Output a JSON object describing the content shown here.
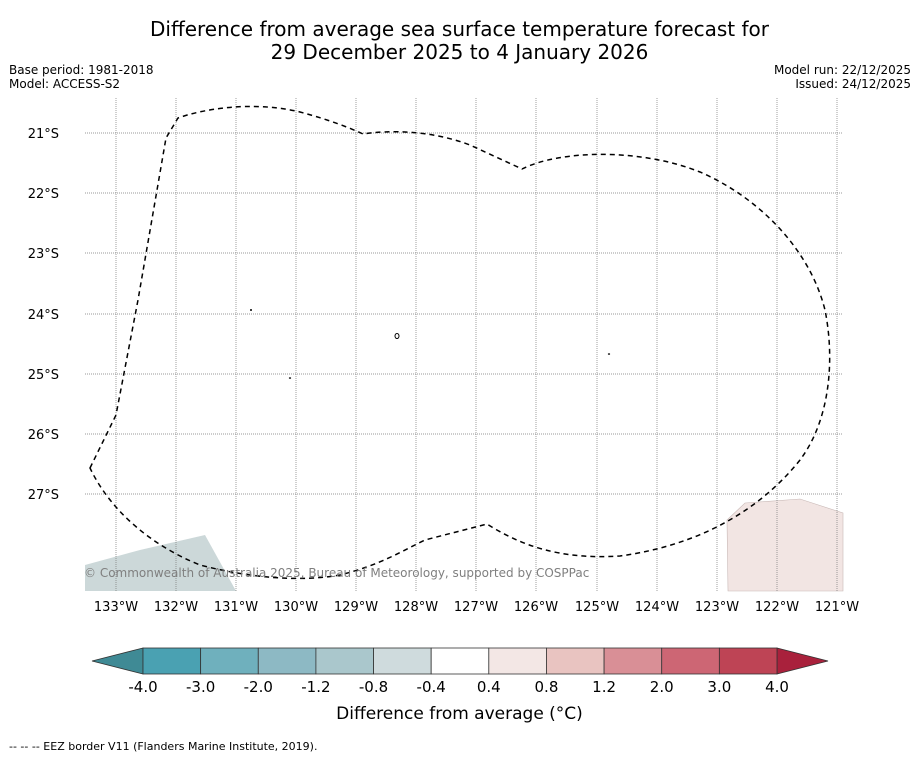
{
  "title": {
    "line1": "Difference from average sea surface temperature forecast for",
    "line2": "29 December 2025 to 4 January 2026"
  },
  "meta_left": {
    "base_period": "Base period: 1981-2018",
    "model": "Model: ACCESS-S2"
  },
  "meta_right": {
    "model_run": "Model run: 22/12/2025",
    "issued": "Issued: 24/12/2025"
  },
  "map": {
    "lat_labels": [
      "21°S",
      "22°S",
      "23°S",
      "24°S",
      "25°S",
      "26°S",
      "27°S"
    ],
    "lon_labels": [
      "133°W",
      "132°W",
      "131°W",
      "130°W",
      "129°W",
      "128°W",
      "127°W",
      "126°W",
      "125°W",
      "124°W",
      "123°W",
      "122°W",
      "121°W"
    ],
    "copyright": "© Commonwealth of Australia 2025, Bureau of Meteorology, supported by COSPPac"
  },
  "colorbar": {
    "tick_labels": [
      "-4.0",
      "-3.0",
      "-2.0",
      "-1.2",
      "-0.8",
      "-0.4",
      "0.4",
      "0.8",
      "1.2",
      "2.0",
      "3.0",
      "4.0"
    ],
    "colors": [
      "#4aa1b2",
      "#6fb0bd",
      "#8db9c4",
      "#aac7cc",
      "#cfdbdd",
      "#ffffff",
      "#f3e7e5",
      "#e9c4c1",
      "#d98f96",
      "#cd6674",
      "#be4455"
    ],
    "under_color": "#3f8a95",
    "over_color": "#a9213c",
    "label": "Difference from average (°C)"
  },
  "footer": "-- -- -- EEZ border V11 (Flanders Marine Institute, 2019)."
}
